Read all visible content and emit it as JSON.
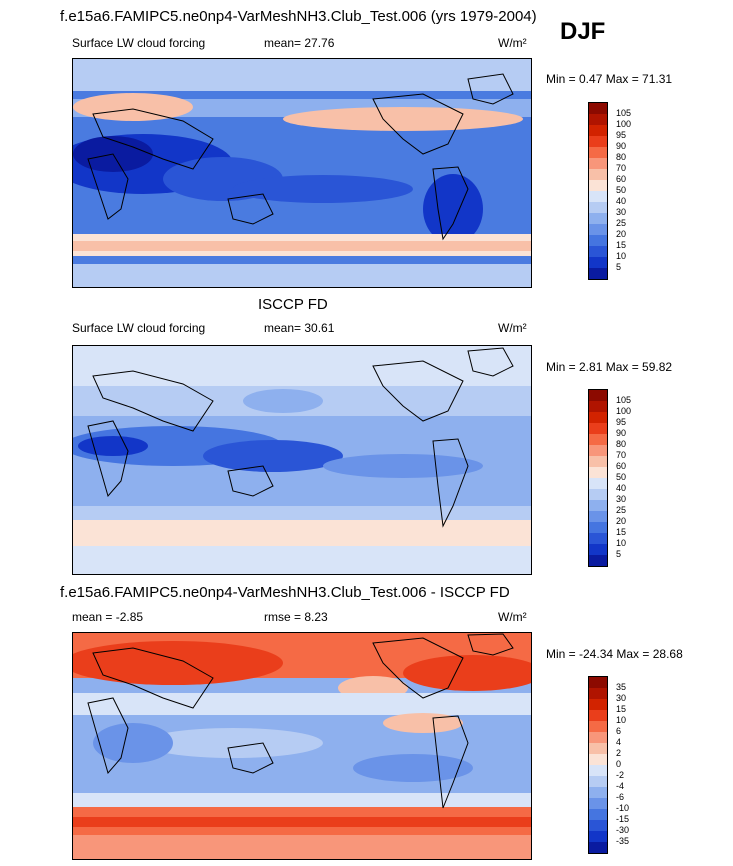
{
  "season": "DJF",
  "panels": [
    {
      "title": "f.e15a6.FAMIPC5.ne0np4-VarMeshNH3.Club_Test.006 (yrs 1979-2004)",
      "left_label": "Surface LW cloud forcing",
      "center_label": "mean=  27.76",
      "units": "W/m²",
      "minmax": "Min =   0.47 Max =  71.31",
      "levels": [
        "105",
        "100",
        "95",
        "90",
        "80",
        "70",
        "60",
        "50",
        "40",
        "30",
        "25",
        "20",
        "15",
        "10",
        "5"
      ],
      "colors": [
        "#8c0a00",
        "#b01400",
        "#d22300",
        "#ea3e1b",
        "#f56a45",
        "#f8967a",
        "#f8c0a8",
        "#fbe3d6",
        "#d8e4f8",
        "#b6ccf3",
        "#8eb0ee",
        "#6a93e8",
        "#4575e0",
        "#2a55d6",
        "#1236c8",
        "#0a1ba0"
      ]
    },
    {
      "title": "ISCCP FD",
      "left_label": "Surface LW cloud forcing",
      "center_label": "mean=  30.61",
      "units": "W/m²",
      "minmax": "Min =   2.81 Max =  59.82",
      "levels": [
        "105",
        "100",
        "95",
        "90",
        "80",
        "70",
        "60",
        "50",
        "40",
        "30",
        "25",
        "20",
        "15",
        "10",
        "5"
      ],
      "colors": [
        "#8c0a00",
        "#b01400",
        "#d22300",
        "#ea3e1b",
        "#f56a45",
        "#f8967a",
        "#f8c0a8",
        "#fbe3d6",
        "#d8e4f8",
        "#b6ccf3",
        "#8eb0ee",
        "#6a93e8",
        "#4575e0",
        "#2a55d6",
        "#1236c8",
        "#0a1ba0"
      ]
    },
    {
      "title": "f.e15a6.FAMIPC5.ne0np4-VarMeshNH3.Club_Test.006 - ISCCP FD",
      "left_label": "mean =  -2.85",
      "center_label": "rmse =   8.23",
      "units": "W/m²",
      "minmax": "Min = -24.34 Max =  28.68",
      "levels": [
        "35",
        "30",
        "15",
        "10",
        "6",
        "4",
        "2",
        "0",
        "-2",
        "-4",
        "-6",
        "-10",
        "-15",
        "-30",
        "-35"
      ],
      "colors": [
        "#8c0a00",
        "#b01400",
        "#d22300",
        "#ea3e1b",
        "#f56a45",
        "#f8967a",
        "#f8c0a8",
        "#fbe3d6",
        "#d8e4f8",
        "#b6ccf3",
        "#8eb0ee",
        "#6a93e8",
        "#4575e0",
        "#2a55d6",
        "#1236c8",
        "#0a1ba0"
      ]
    }
  ]
}
